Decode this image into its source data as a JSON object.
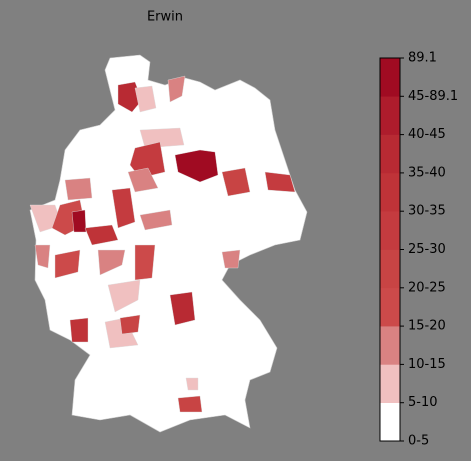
{
  "map": {
    "title": "Erwin",
    "legend": {
      "labels": [
        "0-5",
        "5-10",
        "10-15",
        "15-20",
        "20-25",
        "25-30",
        "30-35",
        "35-40",
        "40-45",
        "45-89.1",
        "89.1"
      ],
      "colors": [
        "#ffffff",
        "#f0c0c0",
        "#d98282",
        "#cc4a4a",
        "#c84444",
        "#c43b3f",
        "#bf3338",
        "#b82a33",
        "#ae1c2c",
        "#a00b22"
      ]
    }
  }
}
